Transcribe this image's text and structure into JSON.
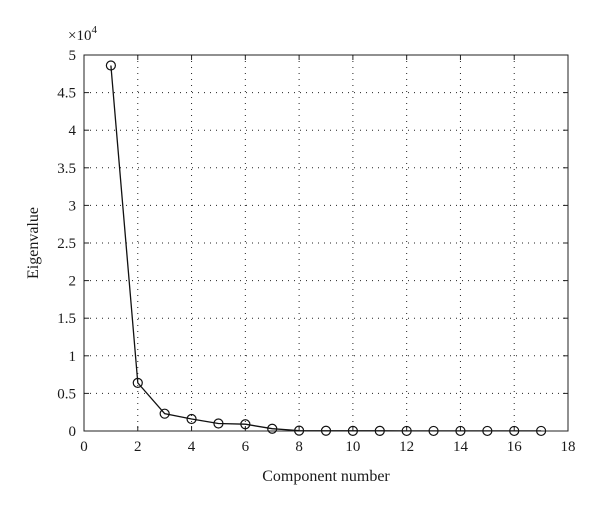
{
  "chart_data": {
    "type": "line",
    "title": "",
    "xlabel": "Component number",
    "ylabel": "Eigenvalue",
    "y_exponent_label": "×10",
    "y_exponent_power": "4",
    "xlim": [
      0,
      18
    ],
    "ylim": [
      0,
      5
    ],
    "x_ticks": [
      0,
      2,
      4,
      6,
      8,
      10,
      12,
      14,
      16,
      18
    ],
    "y_ticks": [
      0,
      0.5,
      1,
      1.5,
      2,
      2.5,
      3,
      3.5,
      4,
      4.5,
      5
    ],
    "grid": true,
    "marker": "open-circle",
    "series": [
      {
        "x": [
          1,
          2,
          3,
          4,
          5,
          6,
          7,
          8,
          9,
          10,
          11,
          12,
          13,
          14,
          15,
          16,
          17
        ],
        "y": [
          4.86,
          0.64,
          0.23,
          0.16,
          0.1,
          0.09,
          0.03,
          0.005,
          0.003,
          0.002,
          0.002,
          0.001,
          0.001,
          0.001,
          0.001,
          0.001,
          0.001
        ]
      }
    ]
  }
}
